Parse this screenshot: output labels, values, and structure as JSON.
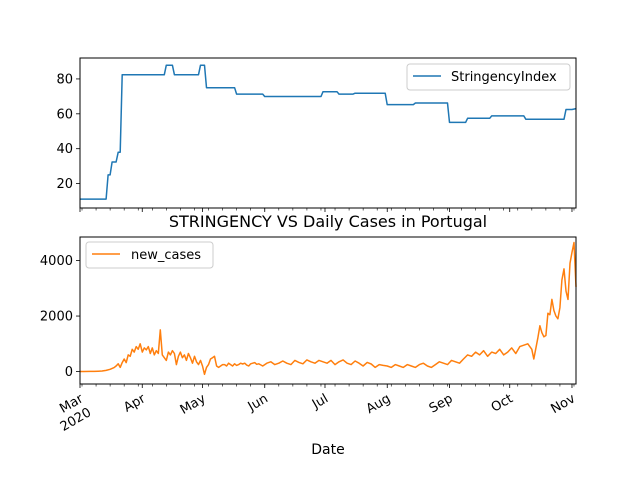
{
  "chart_data": [
    {
      "type": "line",
      "title": "",
      "xlabel": "",
      "ylabel": "",
      "ylim": [
        6,
        92
      ],
      "yticks": [
        20,
        40,
        60,
        80
      ],
      "legend": "top-right",
      "series": [
        {
          "name": "StringencyIndex",
          "color": "#1f77b4",
          "points": [
            [
              "2020-03-01",
              11.1
            ],
            [
              "2020-03-14",
              11.1
            ],
            [
              "2020-03-15",
              25.0
            ],
            [
              "2020-03-16",
              25.0
            ],
            [
              "2020-03-17",
              32.4
            ],
            [
              "2020-03-19",
              32.4
            ],
            [
              "2020-03-20",
              38.0
            ],
            [
              "2020-03-21",
              38.0
            ],
            [
              "2020-03-22",
              82.4
            ],
            [
              "2020-04-12",
              82.4
            ],
            [
              "2020-04-13",
              87.9
            ],
            [
              "2020-04-16",
              87.9
            ],
            [
              "2020-04-17",
              82.4
            ],
            [
              "2020-04-29",
              82.4
            ],
            [
              "2020-04-30",
              87.9
            ],
            [
              "2020-05-02",
              87.9
            ],
            [
              "2020-05-03",
              75.0
            ],
            [
              "2020-05-17",
              75.0
            ],
            [
              "2020-05-18",
              71.3
            ],
            [
              "2020-05-31",
              71.3
            ],
            [
              "2020-06-01",
              69.9
            ],
            [
              "2020-06-29",
              69.9
            ],
            [
              "2020-06-30",
              72.7
            ],
            [
              "2020-07-07",
              72.7
            ],
            [
              "2020-07-08",
              71.3
            ],
            [
              "2020-07-15",
              71.3
            ],
            [
              "2020-07-16",
              71.8
            ],
            [
              "2020-07-24",
              71.8
            ],
            [
              "2020-07-25",
              71.8
            ],
            [
              "2020-07-31",
              71.8
            ],
            [
              "2020-08-01",
              65.3
            ],
            [
              "2020-08-14",
              65.3
            ],
            [
              "2020-08-15",
              66.2
            ],
            [
              "2020-08-31",
              66.2
            ],
            [
              "2020-09-01",
              55.1
            ],
            [
              "2020-09-09",
              55.1
            ],
            [
              "2020-09-10",
              57.4
            ],
            [
              "2020-09-21",
              57.4
            ],
            [
              "2020-09-22",
              58.8
            ],
            [
              "2020-10-08",
              58.8
            ],
            [
              "2020-10-09",
              56.9
            ],
            [
              "2020-10-28",
              56.9
            ],
            [
              "2020-10-29",
              62.5
            ],
            [
              "2020-10-31",
              62.5
            ],
            [
              "2020-11-01",
              62.5
            ],
            [
              "2020-11-03",
              63.0
            ]
          ]
        }
      ]
    },
    {
      "type": "line",
      "title": "STRINGENCY VS Daily Cases in Portugal",
      "xlabel": "Date",
      "ylabel": "",
      "ylim": [
        -450,
        4850
      ],
      "yticks": [
        0,
        2000,
        4000
      ],
      "legend": "top-left",
      "xticks_major": [
        {
          "date": "2020-03-01",
          "label": "Mar",
          "label2": "2020"
        },
        {
          "date": "2020-04-01",
          "label": "Apr"
        },
        {
          "date": "2020-05-01",
          "label": "May"
        },
        {
          "date": "2020-06-01",
          "label": "Jun"
        },
        {
          "date": "2020-07-01",
          "label": "Jul"
        },
        {
          "date": "2020-08-01",
          "label": "Aug"
        },
        {
          "date": "2020-09-01",
          "label": "Sep"
        },
        {
          "date": "2020-10-01",
          "label": "Oct"
        },
        {
          "date": "2020-11-01",
          "label": "Nov"
        }
      ],
      "series": [
        {
          "name": "new_cases",
          "color": "#ff7f0e",
          "points": [
            [
              "2020-03-01",
              0
            ],
            [
              "2020-03-03",
              2
            ],
            [
              "2020-03-06",
              5
            ],
            [
              "2020-03-08",
              5
            ],
            [
              "2020-03-10",
              12
            ],
            [
              "2020-03-12",
              20
            ],
            [
              "2020-03-14",
              40
            ],
            [
              "2020-03-16",
              80
            ],
            [
              "2020-03-18",
              140
            ],
            [
              "2020-03-19",
              200
            ],
            [
              "2020-03-20",
              280
            ],
            [
              "2020-03-21",
              150
            ],
            [
              "2020-03-22",
              320
            ],
            [
              "2020-03-23",
              450
            ],
            [
              "2020-03-24",
              320
            ],
            [
              "2020-03-25",
              600
            ],
            [
              "2020-03-26",
              550
            ],
            [
              "2020-03-27",
              800
            ],
            [
              "2020-03-28",
              700
            ],
            [
              "2020-03-29",
              900
            ],
            [
              "2020-03-30",
              800
            ],
            [
              "2020-03-31",
              1000
            ],
            [
              "2020-04-01",
              700
            ],
            [
              "2020-04-02",
              850
            ],
            [
              "2020-04-03",
              780
            ],
            [
              "2020-04-04",
              900
            ],
            [
              "2020-04-05",
              650
            ],
            [
              "2020-04-06",
              850
            ],
            [
              "2020-04-07",
              600
            ],
            [
              "2020-04-08",
              750
            ],
            [
              "2020-04-09",
              650
            ],
            [
              "2020-04-10",
              1500
            ],
            [
              "2020-04-11",
              600
            ],
            [
              "2020-04-12",
              500
            ],
            [
              "2020-04-13",
              400
            ],
            [
              "2020-04-14",
              700
            ],
            [
              "2020-04-15",
              600
            ],
            [
              "2020-04-16",
              750
            ],
            [
              "2020-04-17",
              650
            ],
            [
              "2020-04-18",
              250
            ],
            [
              "2020-04-19",
              550
            ],
            [
              "2020-04-20",
              700
            ],
            [
              "2020-04-21",
              500
            ],
            [
              "2020-04-22",
              600
            ],
            [
              "2020-04-23",
              400
            ],
            [
              "2020-04-24",
              650
            ],
            [
              "2020-04-25",
              500
            ],
            [
              "2020-04-26",
              300
            ],
            [
              "2020-04-27",
              550
            ],
            [
              "2020-04-28",
              350
            ],
            [
              "2020-04-29",
              250
            ],
            [
              "2020-04-30",
              400
            ],
            [
              "2020-05-01",
              200
            ],
            [
              "2020-05-02",
              -100
            ],
            [
              "2020-05-03",
              150
            ],
            [
              "2020-05-04",
              250
            ],
            [
              "2020-05-05",
              450
            ],
            [
              "2020-05-06",
              500
            ],
            [
              "2020-05-07",
              550
            ],
            [
              "2020-05-08",
              200
            ],
            [
              "2020-05-09",
              150
            ],
            [
              "2020-05-10",
              200
            ],
            [
              "2020-05-11",
              250
            ],
            [
              "2020-05-12",
              250
            ],
            [
              "2020-05-13",
              200
            ],
            [
              "2020-05-14",
              300
            ],
            [
              "2020-05-15",
              250
            ],
            [
              "2020-05-16",
              200
            ],
            [
              "2020-05-17",
              280
            ],
            [
              "2020-05-18",
              220
            ],
            [
              "2020-05-19",
              250
            ],
            [
              "2020-05-20",
              300
            ],
            [
              "2020-05-21",
              270
            ],
            [
              "2020-05-22",
              300
            ],
            [
              "2020-05-23",
              230
            ],
            [
              "2020-05-24",
              200
            ],
            [
              "2020-05-25",
              280
            ],
            [
              "2020-05-26",
              300
            ],
            [
              "2020-05-27",
              320
            ],
            [
              "2020-05-28",
              260
            ],
            [
              "2020-05-29",
              280
            ],
            [
              "2020-05-30",
              240
            ],
            [
              "2020-05-31",
              200
            ],
            [
              "2020-06-02",
              300
            ],
            [
              "2020-06-04",
              350
            ],
            [
              "2020-06-06",
              250
            ],
            [
              "2020-06-08",
              300
            ],
            [
              "2020-06-10",
              380
            ],
            [
              "2020-06-12",
              300
            ],
            [
              "2020-06-14",
              250
            ],
            [
              "2020-06-16",
              400
            ],
            [
              "2020-06-18",
              330
            ],
            [
              "2020-06-20",
              280
            ],
            [
              "2020-06-22",
              420
            ],
            [
              "2020-06-24",
              350
            ],
            [
              "2020-06-26",
              300
            ],
            [
              "2020-06-28",
              400
            ],
            [
              "2020-06-30",
              350
            ],
            [
              "2020-07-02",
              300
            ],
            [
              "2020-07-04",
              400
            ],
            [
              "2020-07-06",
              250
            ],
            [
              "2020-07-08",
              350
            ],
            [
              "2020-07-10",
              420
            ],
            [
              "2020-07-12",
              300
            ],
            [
              "2020-07-14",
              250
            ],
            [
              "2020-07-16",
              380
            ],
            [
              "2020-07-18",
              300
            ],
            [
              "2020-07-20",
              200
            ],
            [
              "2020-07-22",
              330
            ],
            [
              "2020-07-24",
              270
            ],
            [
              "2020-07-26",
              150
            ],
            [
              "2020-07-28",
              250
            ],
            [
              "2020-07-30",
              220
            ],
            [
              "2020-08-01",
              200
            ],
            [
              "2020-08-03",
              150
            ],
            [
              "2020-08-05",
              250
            ],
            [
              "2020-08-07",
              200
            ],
            [
              "2020-08-09",
              150
            ],
            [
              "2020-08-11",
              250
            ],
            [
              "2020-08-13",
              200
            ],
            [
              "2020-08-15",
              150
            ],
            [
              "2020-08-17",
              250
            ],
            [
              "2020-08-19",
              300
            ],
            [
              "2020-08-21",
              200
            ],
            [
              "2020-08-23",
              150
            ],
            [
              "2020-08-25",
              250
            ],
            [
              "2020-08-27",
              350
            ],
            [
              "2020-08-29",
              300
            ],
            [
              "2020-08-31",
              250
            ],
            [
              "2020-09-02",
              400
            ],
            [
              "2020-09-04",
              350
            ],
            [
              "2020-09-06",
              300
            ],
            [
              "2020-09-08",
              450
            ],
            [
              "2020-09-10",
              600
            ],
            [
              "2020-09-12",
              550
            ],
            [
              "2020-09-14",
              700
            ],
            [
              "2020-09-16",
              600
            ],
            [
              "2020-09-18",
              750
            ],
            [
              "2020-09-20",
              550
            ],
            [
              "2020-09-22",
              700
            ],
            [
              "2020-09-24",
              650
            ],
            [
              "2020-09-26",
              800
            ],
            [
              "2020-09-28",
              600
            ],
            [
              "2020-09-30",
              700
            ],
            [
              "2020-10-02",
              850
            ],
            [
              "2020-10-04",
              650
            ],
            [
              "2020-10-06",
              900
            ],
            [
              "2020-10-08",
              950
            ],
            [
              "2020-10-10",
              1000
            ],
            [
              "2020-10-12",
              800
            ],
            [
              "2020-10-13",
              450
            ],
            [
              "2020-10-15",
              1200
            ],
            [
              "2020-10-16",
              1650
            ],
            [
              "2020-10-17",
              1400
            ],
            [
              "2020-10-18",
              1250
            ],
            [
              "2020-10-19",
              1300
            ],
            [
              "2020-10-20",
              2100
            ],
            [
              "2020-10-21",
              2050
            ],
            [
              "2020-10-22",
              2600
            ],
            [
              "2020-10-23",
              2200
            ],
            [
              "2020-10-24",
              2000
            ],
            [
              "2020-10-25",
              1900
            ],
            [
              "2020-10-26",
              2300
            ],
            [
              "2020-10-27",
              3300
            ],
            [
              "2020-10-28",
              3700
            ],
            [
              "2020-10-29",
              2900
            ],
            [
              "2020-10-30",
              2600
            ],
            [
              "2020-10-31",
              3900
            ],
            [
              "2020-11-01",
              4300
            ],
            [
              "2020-11-02",
              4650
            ],
            [
              "2020-11-03",
              3050
            ]
          ]
        }
      ]
    }
  ]
}
